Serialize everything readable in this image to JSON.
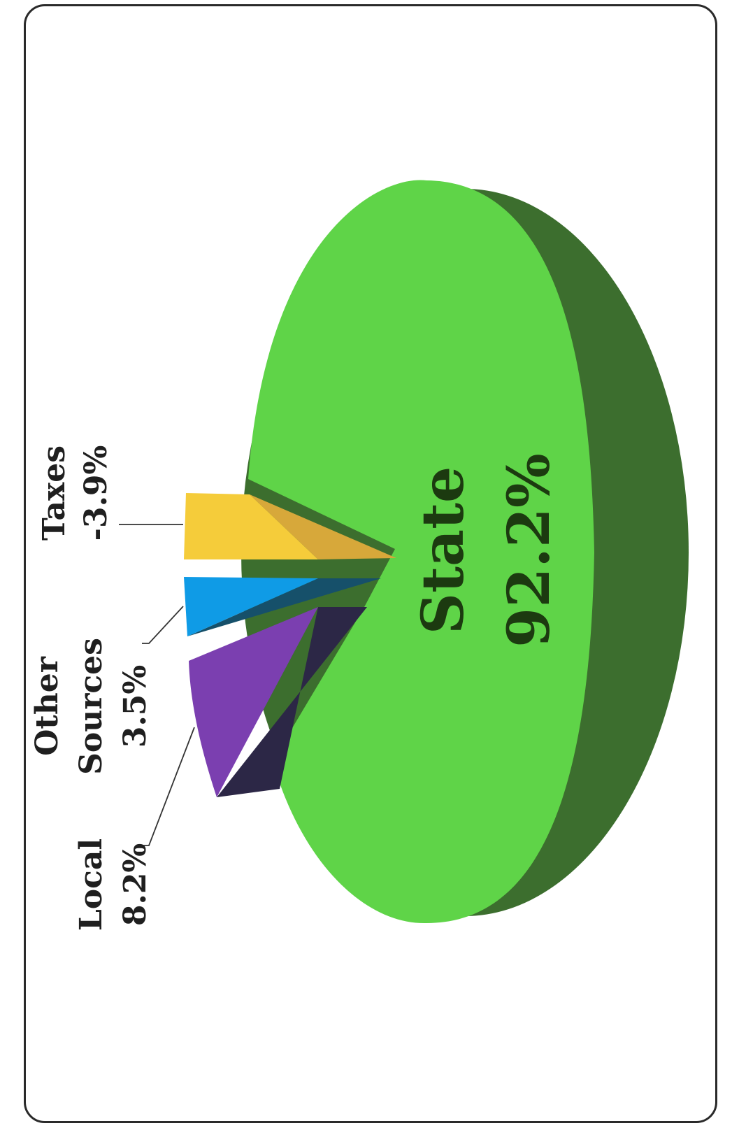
{
  "chart_data": {
    "type": "pie",
    "style": "3d-exploded",
    "orientation": "rotated-90",
    "slices": [
      {
        "label": "State",
        "value_text": "92.2%",
        "value": 92.2,
        "color": "#5fd448",
        "side_color": "#3c6e2e"
      },
      {
        "label": "Local",
        "value_text": "8.2%",
        "value": 8.2,
        "color": "#7b3fb0",
        "side_color": "#2c2746"
      },
      {
        "label": "Other Sources",
        "label_lines": [
          "Other",
          "Sources"
        ],
        "value_text": "3.5%",
        "value": 3.5,
        "color": "#0f9be6",
        "side_color": "#16506a"
      },
      {
        "label": "Taxes",
        "value_text": "-3.9%",
        "value": -3.9,
        "color": "#f5cc3a",
        "side_color": "#d7a83a"
      }
    ]
  }
}
